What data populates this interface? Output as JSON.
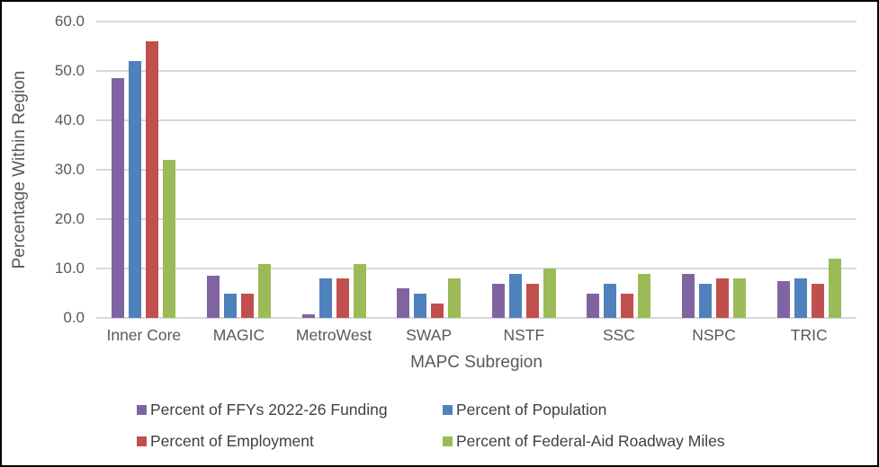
{
  "chart_data": {
    "type": "bar",
    "title": "",
    "xlabel": "MAPC Subregion",
    "ylabel": "Percentage Within Region",
    "categories": [
      "Inner Core",
      "MAGIC",
      "MetroWest",
      "SWAP",
      "NSTF",
      "SSC",
      "NSPC",
      "TRIC"
    ],
    "series": [
      {
        "name": "Percent of FFYs 2022-26 Funding",
        "color": "#8064A2",
        "values": [
          48.5,
          8.5,
          0.7,
          6.0,
          7.0,
          5.0,
          9.0,
          7.5
        ]
      },
      {
        "name": "Percent of Population",
        "color": "#4F81BD",
        "values": [
          52.0,
          5.0,
          8.0,
          5.0,
          9.0,
          7.0,
          7.0,
          8.0
        ]
      },
      {
        "name": "Percent of Employment",
        "color": "#C0504D",
        "values": [
          56.0,
          5.0,
          8.0,
          3.0,
          7.0,
          5.0,
          8.0,
          7.0
        ]
      },
      {
        "name": "Percent of Federal-Aid Roadway Miles",
        "color": "#9BBB59",
        "values": [
          32.0,
          11.0,
          11.0,
          8.0,
          10.0,
          9.0,
          8.0,
          12.0
        ]
      }
    ],
    "ylim": [
      0,
      60
    ],
    "ytick_step": 10,
    "ytick_labels": [
      "0.0",
      "10.0",
      "20.0",
      "30.0",
      "40.0",
      "50.0",
      "60.0"
    ],
    "grid": true,
    "legend_position": "bottom",
    "colors": {
      "gridline": "#d9d9d9",
      "axis_text": "#595959",
      "legend_text": "#404040",
      "frame_border": "#000000",
      "background": "#ffffff"
    }
  }
}
